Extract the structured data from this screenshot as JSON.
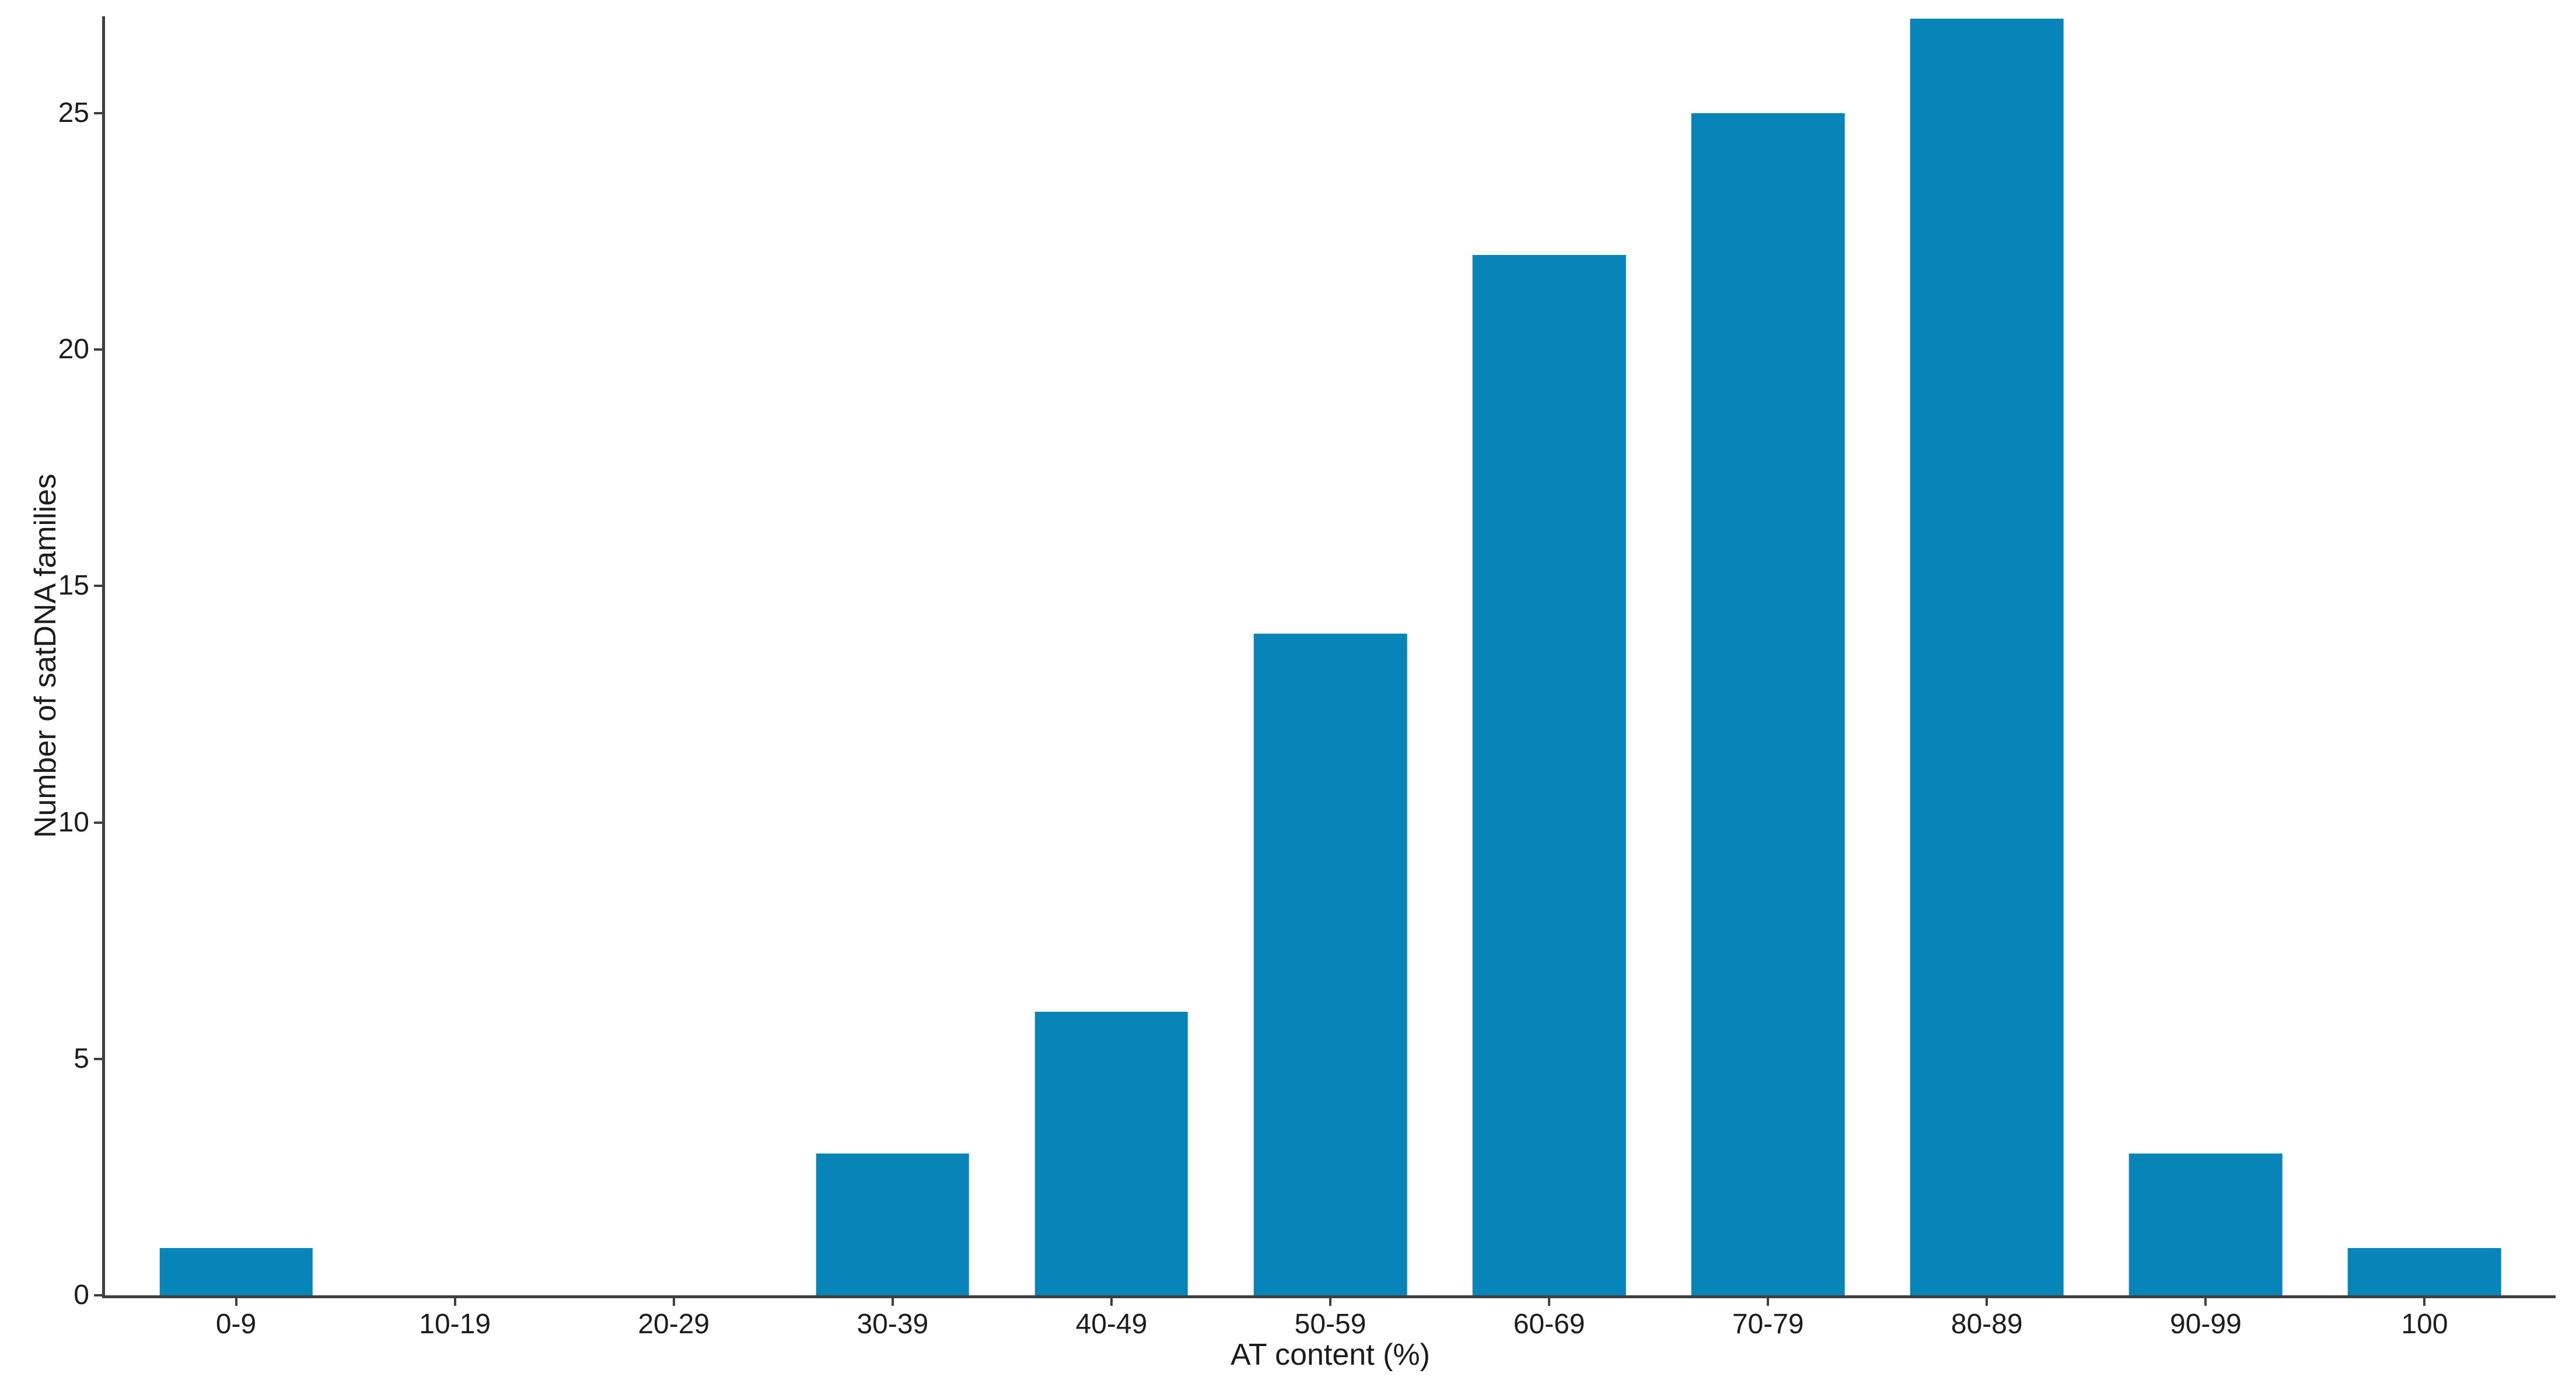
{
  "chart_data": {
    "type": "bar",
    "xlabel": "AT content (%)",
    "ylabel": "Number of satDNA families",
    "categories": [
      "0-9",
      "10-19",
      "20-29",
      "30-39",
      "40-49",
      "50-59",
      "60-69",
      "70-79",
      "80-89",
      "90-99",
      "100"
    ],
    "values": [
      1,
      0,
      0,
      3,
      6,
      14,
      22,
      25,
      27,
      3,
      1
    ],
    "yticks": [
      0,
      5,
      10,
      15,
      20,
      25
    ],
    "ylim": [
      0,
      27.05
    ],
    "grid": false,
    "colors": {
      "bar": "#0885b8",
      "axis": "#3f3f3f",
      "text": "#1c1c1c",
      "background": "#ffffff"
    }
  }
}
